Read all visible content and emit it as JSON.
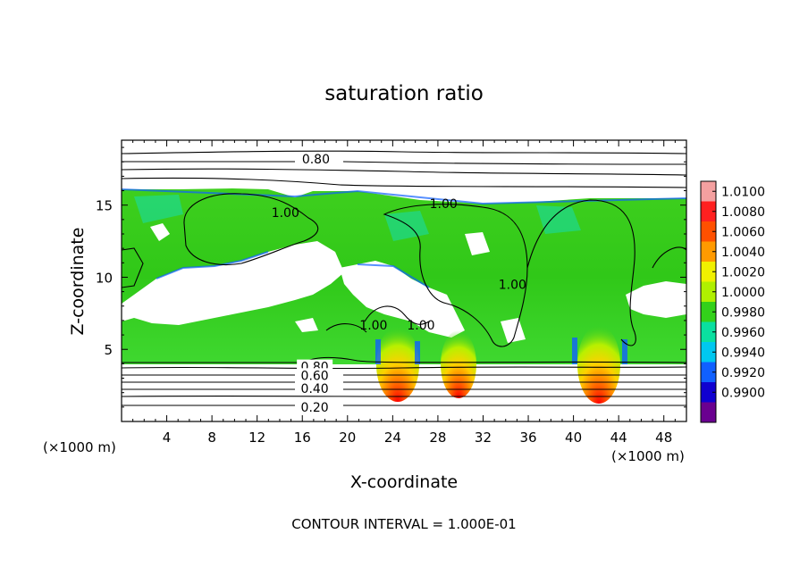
{
  "chart_data": {
    "type": "heatmap",
    "title": "saturation ratio",
    "xlabel": "X-coordinate",
    "ylabel": "Z-coordinate",
    "x_unit_left": "(×1000 m)",
    "x_unit_right": "(×1000 m)",
    "xlim": [
      0,
      50
    ],
    "ylim": [
      0,
      19.5
    ],
    "x_ticks": [
      4,
      8,
      12,
      16,
      20,
      24,
      28,
      32,
      36,
      40,
      44,
      48
    ],
    "y_ticks": [
      5,
      10,
      15
    ],
    "footer": "CONTOUR INTERVAL = 1.000E-01",
    "contour_labels": [
      {
        "text": "0.80",
        "x": 17.2,
        "z": 18.2
      },
      {
        "text": "1.00",
        "x": 14.5,
        "z": 14.5
      },
      {
        "text": "1.00",
        "x": 28.5,
        "z": 15.1
      },
      {
        "text": "1.00",
        "x": 34.6,
        "z": 9.5
      },
      {
        "text": "1.00",
        "x": 22.3,
        "z": 6.7
      },
      {
        "text": "1.00",
        "x": 26.5,
        "z": 6.7
      },
      {
        "text": "0.80",
        "x": 17.1,
        "z": 3.8
      },
      {
        "text": "0.60",
        "x": 17.1,
        "z": 3.2
      },
      {
        "text": "0.40",
        "x": 17.1,
        "z": 2.3
      },
      {
        "text": "0.20",
        "x": 17.1,
        "z": 1.0
      }
    ],
    "colorbar": {
      "levels": [
        "1.0100",
        "1.0080",
        "1.0060",
        "1.0040",
        "1.0020",
        "1.0000",
        "0.9980",
        "0.9960",
        "0.9940",
        "0.9920",
        "0.9900"
      ],
      "colors": [
        "#f4a0a0",
        "#ff2020",
        "#ff5000",
        "#ff9a00",
        "#f0f000",
        "#b0f000",
        "#33d11a",
        "#0ae0a0",
        "#00c8f0",
        "#1060ff",
        "#1000d0",
        "#6a0090"
      ]
    },
    "hotspots": [
      {
        "x": 24.1,
        "z": 4.6
      },
      {
        "x": 29.8,
        "z": 4.6
      },
      {
        "x": 42.2,
        "z": 4.6
      }
    ]
  }
}
